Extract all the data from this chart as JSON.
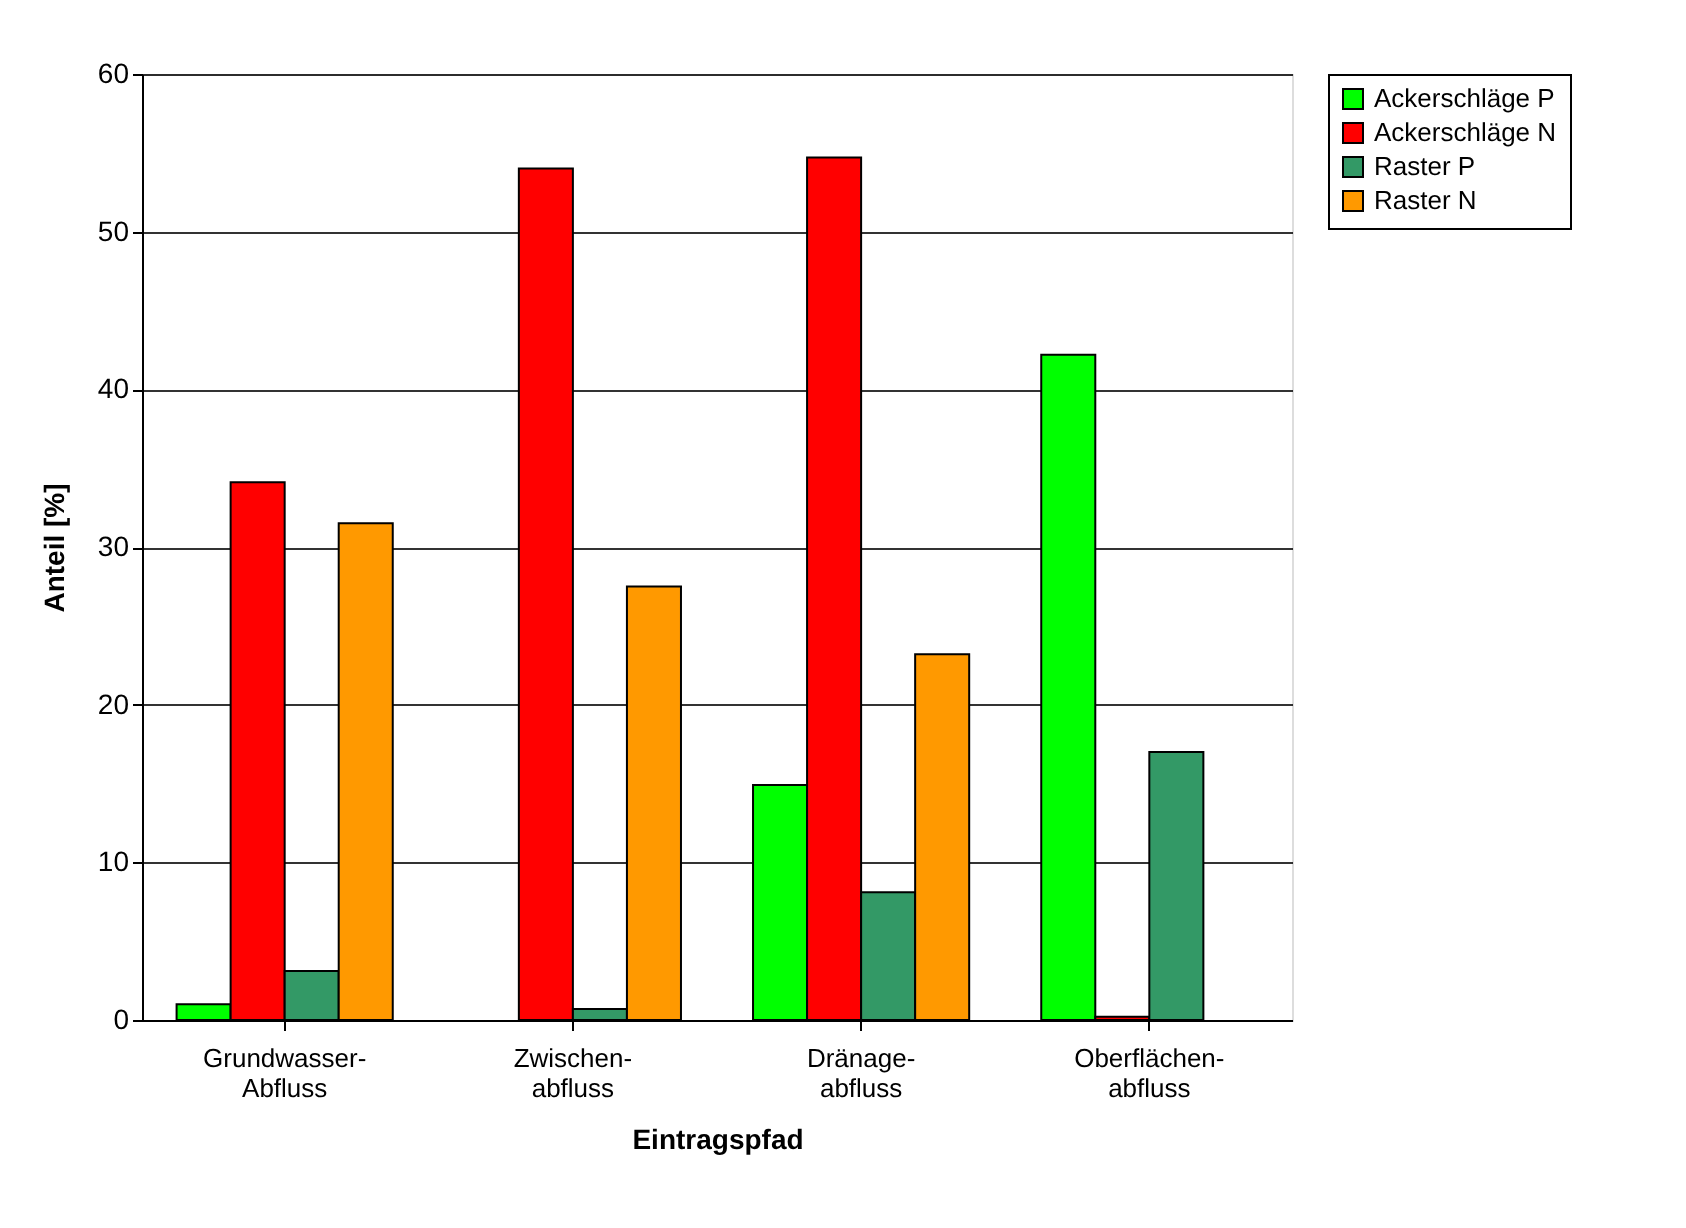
{
  "chart_data": {
    "type": "bar",
    "xlabel": "Eintragspfad",
    "ylabel": "Anteil [%]",
    "categories": [
      "Grundwasser-\nAbfluss",
      "Zwischen-\nabfluss",
      "Dränage-\nabfluss",
      "Oberflächen-\nabfluss"
    ],
    "series": [
      {
        "name": "Ackerschläge P",
        "color": "#00ff00",
        "values": [
          1.0,
          null,
          14.9,
          42.2
        ]
      },
      {
        "name": "Ackerschläge N",
        "color": "#ff0000",
        "values": [
          34.1,
          54.0,
          54.7,
          0.2
        ]
      },
      {
        "name": "Raster P",
        "color": "#339966",
        "values": [
          3.1,
          0.7,
          8.1,
          17.0
        ]
      },
      {
        "name": "Raster N",
        "color": "#ff9900",
        "values": [
          31.5,
          27.5,
          23.2,
          null
        ]
      }
    ],
    "ylim": [
      0,
      60
    ],
    "yticks": [
      0,
      10,
      20,
      30,
      40,
      50,
      60
    ],
    "grid": "y",
    "legend": "right"
  }
}
